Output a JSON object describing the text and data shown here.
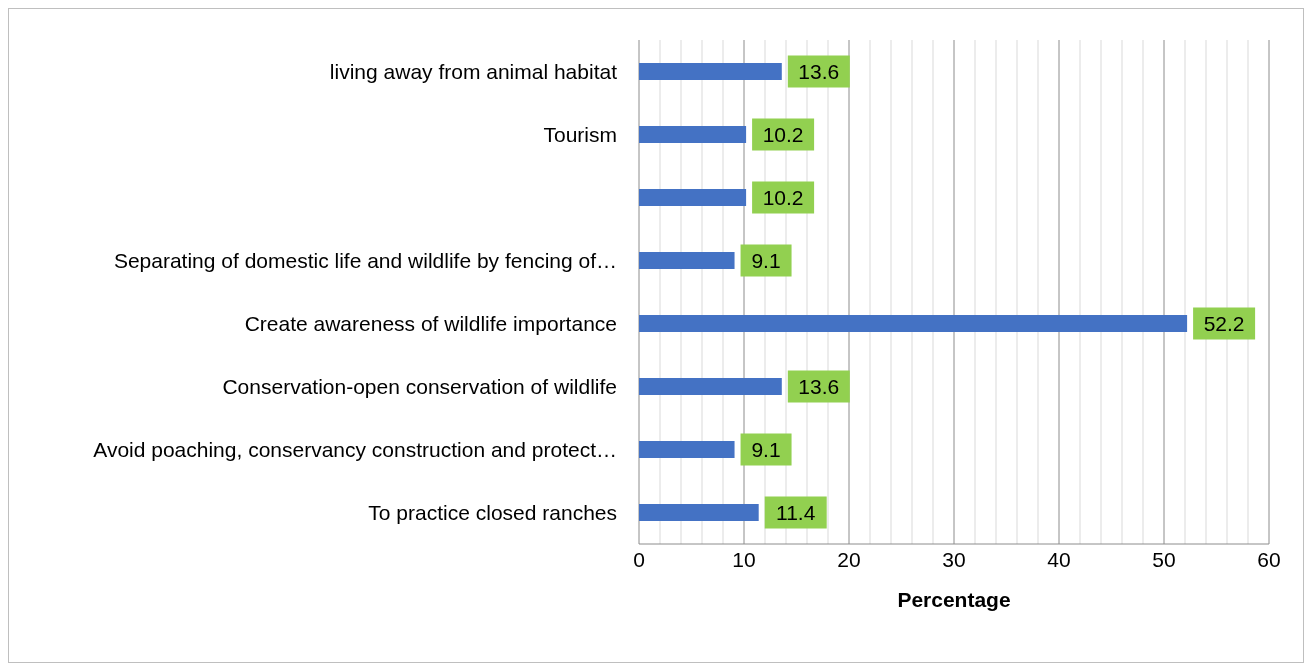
{
  "chart_data": {
    "type": "bar",
    "orientation": "horizontal",
    "categories": [
      "living away from animal habitat",
      "Tourism",
      null,
      "Separating of domestic life and wildlife by fencing of…",
      "Create awareness of wildlife importance",
      "Conservation-open conservation of wildlife",
      "Avoid poaching, conservancy construction and protect…",
      "To practice closed ranches"
    ],
    "values": [
      13.6,
      10.2,
      10.2,
      9.1,
      52.2,
      13.6,
      9.1,
      11.4
    ],
    "color": "#4472c4",
    "xlabel": "Percentage",
    "xlim": [
      0,
      60
    ],
    "xticks": [
      0,
      {
        "value": 2,
        "label": null
      },
      {
        "value": 4,
        "label": null
      },
      {
        "value": 6,
        "label": null
      },
      {
        "value": 8,
        "label": null
      },
      10,
      {
        "value": 12,
        "label": null
      },
      {
        "value": 14,
        "label": null
      },
      {
        "value": 16,
        "label": null
      },
      {
        "value": 18,
        "label": null
      },
      20,
      {
        "value": 22,
        "label": null
      },
      {
        "value": 24,
        "label": null
      },
      {
        "value": 26,
        "label": null
      },
      {
        "value": 28,
        "label": null
      },
      30,
      {
        "value": 32,
        "label": null
      },
      {
        "value": 34,
        "label": null
      },
      {
        "value": 36,
        "label": null
      },
      {
        "value": 38,
        "label": null
      },
      40,
      {
        "value": 42,
        "label": null
      },
      {
        "value": 44,
        "label": null
      },
      {
        "value": 46,
        "label": null
      },
      {
        "value": 48,
        "label": null
      },
      50,
      {
        "value": 52,
        "label": null
      },
      {
        "value": 54,
        "label": null
      },
      {
        "value": 56,
        "label": null
      },
      {
        "value": 58,
        "label": null
      },
      60
    ],
    "grid": "x",
    "data_labels": true
  }
}
